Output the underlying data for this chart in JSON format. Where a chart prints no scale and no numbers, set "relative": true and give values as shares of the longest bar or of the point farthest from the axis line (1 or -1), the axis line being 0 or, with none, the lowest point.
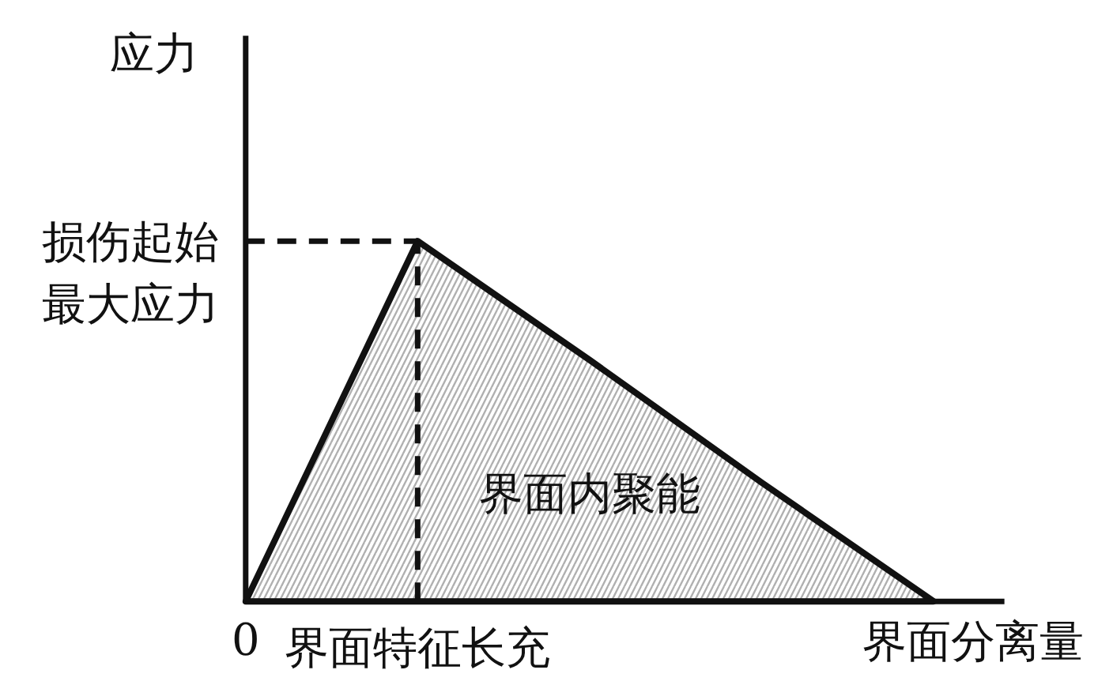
{
  "chart_data": {
    "type": "area",
    "relative": true,
    "xlabel": "界面分离量",
    "ylabel": "应力",
    "categories": [
      "0",
      "界面特征长充",
      null,
      null,
      null
    ],
    "series": [
      {
        "color": "#111111",
        "values": [
          0,
          1,
          0.67,
          0.33,
          0
        ]
      }
    ],
    "line_style": "solid",
    "ref_lines": [
      {
        "axis": "y",
        "value": 1,
        "label": "损伤起始最大应力",
        "line_style": "dashed",
        "color": "#111111"
      },
      {
        "axis": "x",
        "value": "界面特征长充",
        "line_style": "dashed",
        "color": "#111111"
      }
    ],
    "annotations": [
      "界面内聚能"
    ]
  }
}
